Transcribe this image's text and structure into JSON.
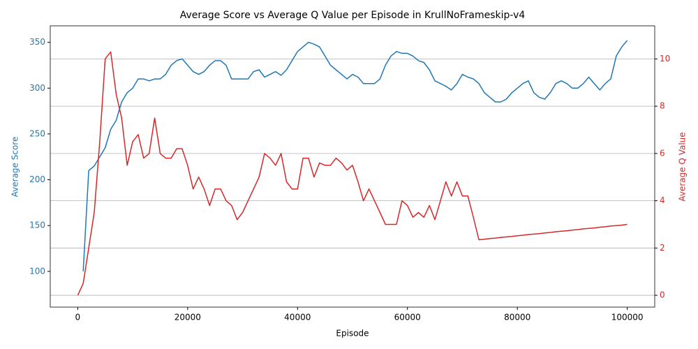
{
  "chart_data": {
    "type": "line",
    "title": "Average Score vs Average Q Value per Episode in KrullNoFrameskip-v4",
    "xlabel": "Episode",
    "ylabel": "Average Score",
    "y2label": "Average Q Value",
    "x": [
      0,
      1000,
      2000,
      3000,
      4000,
      5000,
      6000,
      7000,
      8000,
      9000,
      10000,
      11000,
      12000,
      13000,
      14000,
      15000,
      16000,
      17000,
      18000,
      19000,
      20000,
      21000,
      22000,
      23000,
      24000,
      25000,
      26000,
      27000,
      28000,
      29000,
      30000,
      31000,
      32000,
      33000,
      34000,
      35000,
      36000,
      37000,
      38000,
      39000,
      40000,
      41000,
      42000,
      43000,
      44000,
      45000,
      46000,
      47000,
      48000,
      49000,
      50000,
      51000,
      52000,
      53000,
      54000,
      55000,
      56000,
      57000,
      58000,
      59000,
      60000,
      61000,
      62000,
      63000,
      64000,
      65000,
      66000,
      67000,
      68000,
      69000,
      70000,
      71000,
      72000,
      73000,
      74000,
      75000,
      76000,
      77000,
      78000,
      79000,
      80000,
      81000,
      82000,
      83000,
      84000,
      85000,
      86000,
      87000,
      88000,
      89000,
      90000,
      91000,
      92000,
      93000,
      94000,
      95000,
      96000,
      97000,
      98000,
      99000,
      100000
    ],
    "series": [
      {
        "name": "Average Score",
        "color": "#1f77b4",
        "axis": "y",
        "values": [
          null,
          100,
          210,
          215,
          225,
          235,
          255,
          265,
          285,
          295,
          300,
          310,
          310,
          308,
          310,
          310,
          315,
          325,
          330,
          332,
          325,
          318,
          315,
          318,
          325,
          330,
          330,
          325,
          310,
          310,
          310,
          310,
          318,
          320,
          312,
          315,
          318,
          314,
          320,
          330,
          340,
          345,
          350,
          348,
          345,
          335,
          325,
          320,
          315,
          310,
          315,
          312,
          305,
          305,
          305,
          310,
          325,
          335,
          340,
          338,
          338,
          335,
          330,
          328,
          320,
          308,
          305,
          302,
          298,
          305,
          315,
          312,
          310,
          305,
          295,
          290,
          285,
          285,
          288,
          295,
          300,
          305,
          308,
          295,
          290,
          288,
          295,
          305,
          308,
          305,
          300,
          300,
          305,
          312,
          305,
          298,
          305,
          310,
          335,
          345,
          352
        ]
      },
      {
        "name": "Average Q Value",
        "color": "#d62728",
        "axis": "y2",
        "values": [
          0,
          0.5,
          2,
          3.5,
          6.5,
          10.0,
          10.3,
          8.5,
          7.5,
          5.5,
          6.5,
          6.8,
          5.8,
          6,
          7.5,
          6,
          5.8,
          5.8,
          6.2,
          6.2,
          5.5,
          4.5,
          5,
          4.5,
          3.8,
          4.5,
          4.5,
          4.0,
          3.8,
          3.2,
          3.5,
          4.0,
          4.5,
          5,
          6.0,
          5.8,
          5.5,
          6,
          4.8,
          4.5,
          4.5,
          5.8,
          5.8,
          5,
          5.6,
          5.5,
          5.5,
          5.8,
          5.6,
          5.3,
          5.5,
          4.8,
          4.0,
          4.5,
          4.0,
          3.5,
          3.0,
          3.0,
          3.0,
          4.0,
          3.8,
          3.3,
          3.5,
          3.3,
          3.8,
          3.2,
          4.0,
          4.8,
          4.2,
          4.8,
          4.2,
          4.2,
          3.3,
          2.35,
          2.37,
          2.4,
          2.42,
          2.45,
          2.47,
          2.49,
          2.52,
          2.54,
          2.57,
          2.59,
          2.61,
          2.64,
          2.66,
          2.69,
          2.71,
          2.73,
          2.76,
          2.78,
          2.81,
          2.83,
          2.85,
          2.88,
          2.9,
          2.93,
          2.95,
          2.97,
          3.0
        ]
      }
    ],
    "xlim": [
      -5000,
      105000
    ],
    "xticks": [
      0,
      20000,
      40000,
      60000,
      80000,
      100000
    ],
    "ylim": [
      61,
      368
    ],
    "yticks": [
      100,
      150,
      200,
      250,
      300,
      350
    ],
    "y2lim": [
      -0.5,
      11.4
    ],
    "y2ticks": [
      0,
      2,
      4,
      6,
      8,
      10
    ],
    "grid": "y2"
  }
}
